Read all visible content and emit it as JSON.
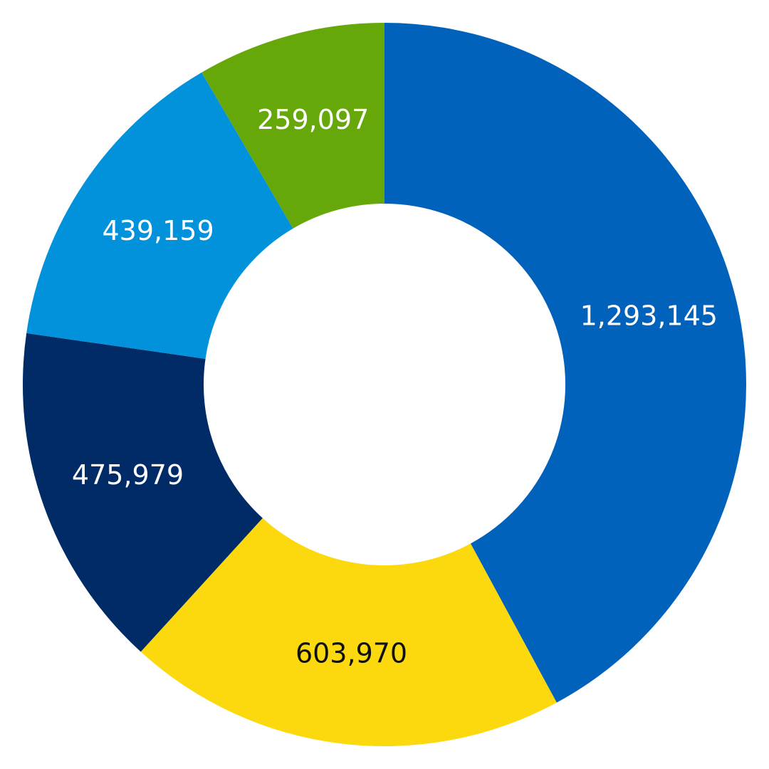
{
  "chart_data": {
    "type": "pie",
    "variant": "donut",
    "categories": [
      "",
      "",
      "",
      "",
      ""
    ],
    "values": [
      1293145,
      603970,
      475979,
      439159,
      259097
    ],
    "value_labels": [
      "1,293,145",
      "603,970",
      "475,979",
      "439,159",
      "259,097"
    ],
    "colors": [
      "#0062BA",
      "#FBD90E",
      "#002B67",
      "#0291DB",
      "#66A70A"
    ],
    "label_colors": [
      "#FFFFFF",
      "#111111",
      "#FFFFFF",
      "#FFFFFF",
      "#FFFFFF"
    ],
    "start": "12 o'clock",
    "direction": "clockwise",
    "legend": "none",
    "title": ""
  }
}
